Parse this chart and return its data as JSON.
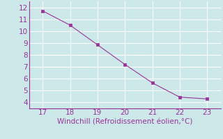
{
  "x": [
    17,
    18,
    19,
    20,
    21,
    22,
    23
  ],
  "y": [
    11.7,
    10.5,
    8.85,
    7.2,
    5.65,
    4.45,
    4.3
  ],
  "line_color": "#993399",
  "marker_color": "#993399",
  "bg_color": "#cce8e8",
  "grid_color": "#ffffff",
  "xlabel": "Windchill (Refroidissement éolien,°C)",
  "xlabel_color": "#993399",
  "tick_color": "#993399",
  "spine_color": "#993399",
  "xlim": [
    16.5,
    23.5
  ],
  "ylim": [
    3.5,
    12.5
  ],
  "xticks": [
    17,
    18,
    19,
    20,
    21,
    22,
    23
  ],
  "yticks": [
    4,
    5,
    6,
    7,
    8,
    9,
    10,
    11,
    12
  ],
  "xlabel_fontsize": 7.5,
  "tick_fontsize": 7.5,
  "figsize": [
    3.2,
    2.0
  ],
  "dpi": 100
}
